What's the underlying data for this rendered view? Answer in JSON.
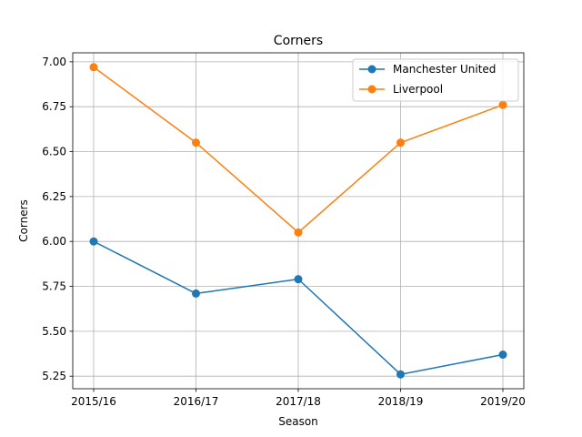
{
  "chart_data": {
    "type": "line",
    "title": "Corners",
    "xlabel": "Season",
    "ylabel": "Corners",
    "categories": [
      "2015/16",
      "2016/17",
      "2017/18",
      "2018/19",
      "2019/20"
    ],
    "ylim": [
      5.18,
      7.05
    ],
    "yticks": [
      5.25,
      5.5,
      5.75,
      6.0,
      6.25,
      6.5,
      6.75,
      7.0
    ],
    "ytick_labels": [
      "5.25",
      "5.50",
      "5.75",
      "6.00",
      "6.25",
      "6.50",
      "6.75",
      "7.00"
    ],
    "grid": true,
    "legend_position": "top-right",
    "series": [
      {
        "name": "Manchester United",
        "color": "#1f77b4",
        "marker": "circle",
        "values": [
          6.0,
          5.71,
          5.79,
          5.26,
          5.37
        ]
      },
      {
        "name": "Liverpool",
        "color": "#ff7f0e",
        "marker": "circle",
        "values": [
          6.97,
          6.55,
          6.05,
          6.55,
          6.76
        ]
      }
    ]
  }
}
